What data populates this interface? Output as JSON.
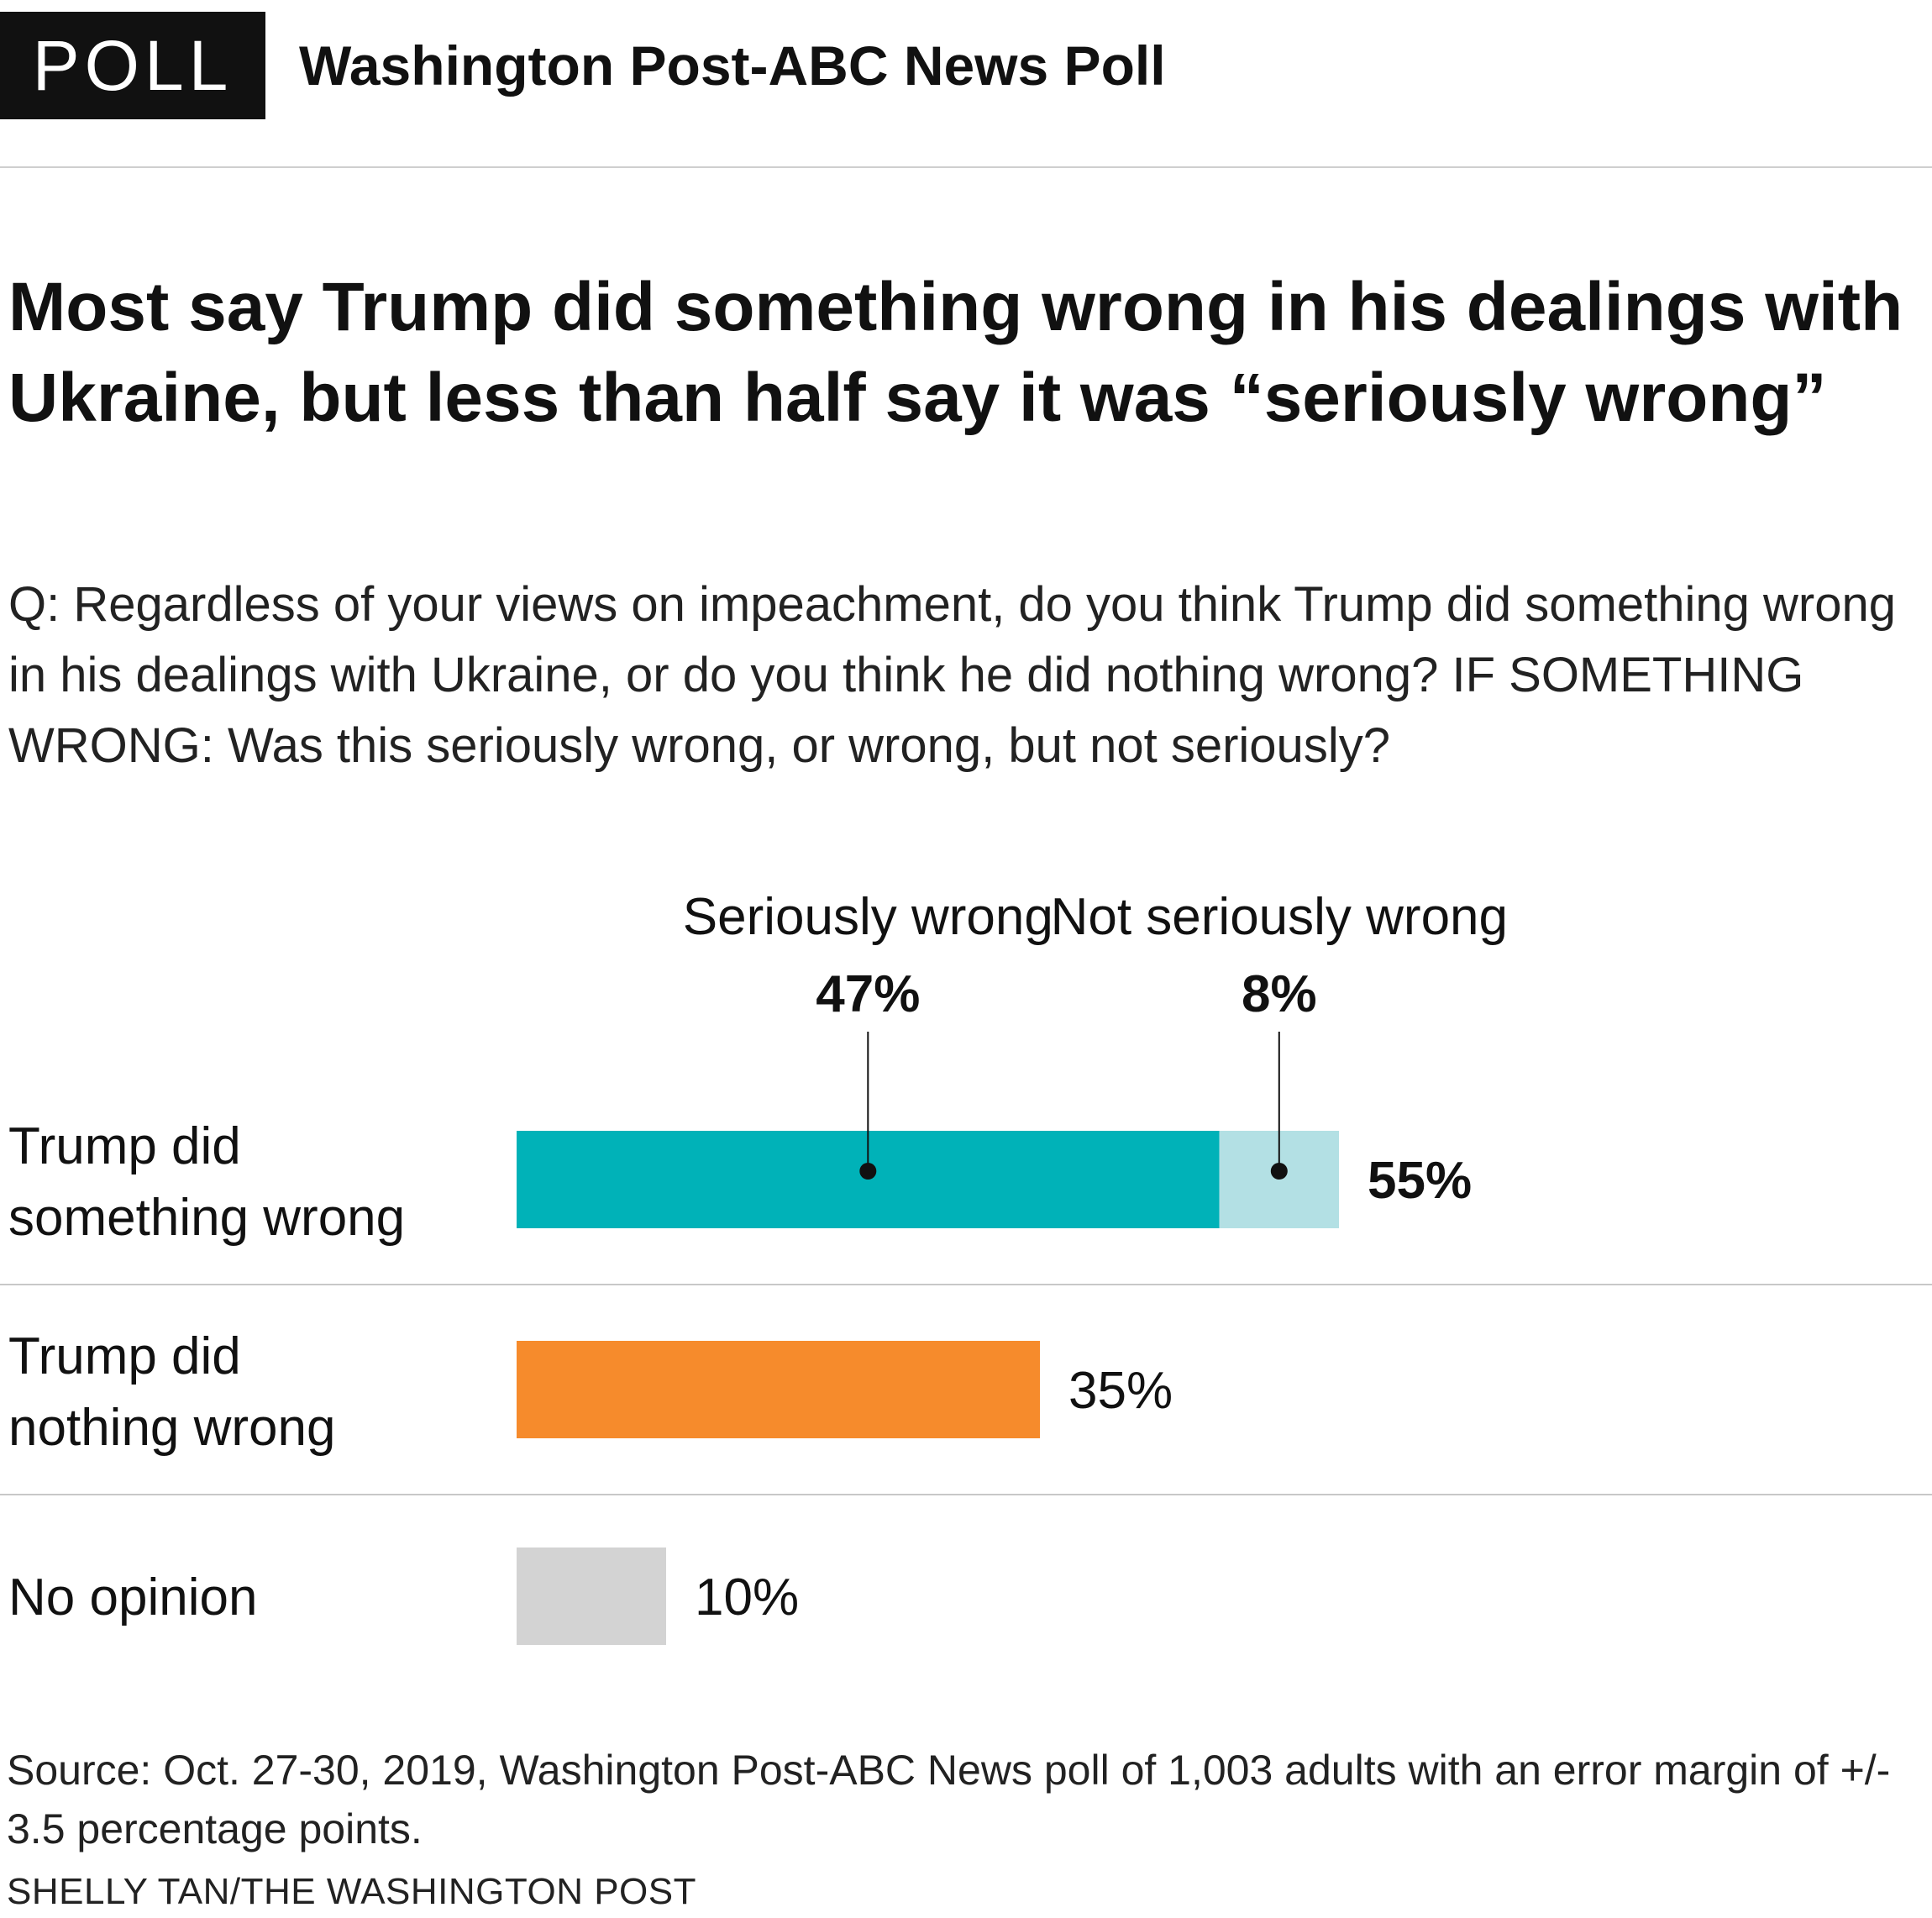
{
  "header": {
    "badge": "POLL",
    "title": "Washington Post-ABC News Poll"
  },
  "title": "Most say Trump did something wrong in his dealings with Ukraine, but less than half say it was “seriously wrong”",
  "subtitle": "Q: Regardless of your views on impeachment, do you think Trump did something wrong in his dealings with Ukraine, or do you think he did nothing wrong? IF SOMETHING WRONG: Was this seriously wrong, or wrong, but not seriously?",
  "chart_data": {
    "type": "bar",
    "orientation": "horizontal",
    "stacked": true,
    "unit": "%",
    "categories": [
      "Trump did\nsomething wrong",
      "Trump did\nnothing wrong",
      "No opinion"
    ],
    "values": [
      55,
      35,
      10
    ],
    "value_labels": [
      "55%",
      "35%",
      "10%"
    ],
    "breakdown": {
      "category": "Trump did\nsomething wrong",
      "parts": [
        {
          "name": "Seriously wrong",
          "value": 47,
          "label": "47%",
          "color": "#00b2b8"
        },
        {
          "name": "Not seriously wrong",
          "value": 8,
          "label": "8%",
          "color": "#b3e0e4"
        }
      ]
    },
    "colors": [
      "#00b2b8",
      "#f68b2c",
      "#d3d3d3"
    ],
    "xlim": [
      0,
      100
    ],
    "grid": false,
    "legend": "none"
  },
  "source": "Source: Oct. 27-30, 2019, Washington Post-ABC News poll of 1,003 adults with an error margin of +/- 3.5 percentage points.",
  "credit": "SHELLY TAN/THE WASHINGTON POST"
}
